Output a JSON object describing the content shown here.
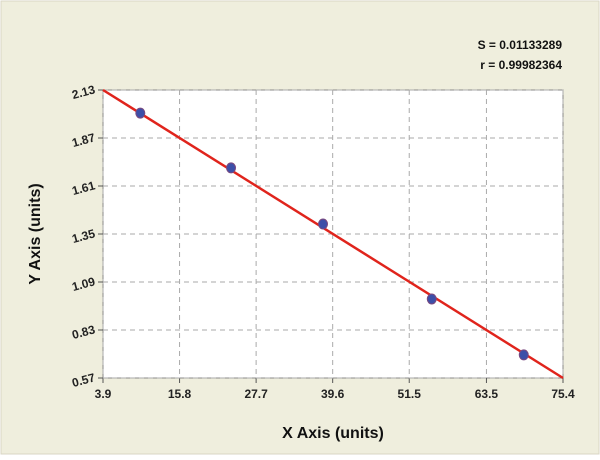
{
  "chart_data": {
    "type": "scatter",
    "annotations": [
      "S = 0.01133289",
      "r = 0.99982364"
    ],
    "xlabel": "X Axis (units)",
    "ylabel": "Y Axis (units)",
    "xlim": [
      3.9,
      75.4
    ],
    "xticks": [
      3.9,
      15.8,
      27.7,
      39.6,
      51.5,
      63.5,
      75.4
    ],
    "ylim": [
      0.57,
      2.13
    ],
    "yticks": [
      0.57,
      0.83,
      1.09,
      1.35,
      1.61,
      1.87,
      2.13
    ],
    "grid": true,
    "series": [
      {
        "color": "#3d4fa8",
        "x": [
          9.7,
          23.8,
          38.1,
          55.0,
          69.3
        ],
        "values": [
          2.005,
          1.708,
          1.404,
          0.998,
          0.695
        ]
      }
    ],
    "fit_line": {
      "color": "#e0241c",
      "x": [
        3.9,
        75.4
      ],
      "values": [
        2.13,
        0.57
      ]
    }
  }
}
